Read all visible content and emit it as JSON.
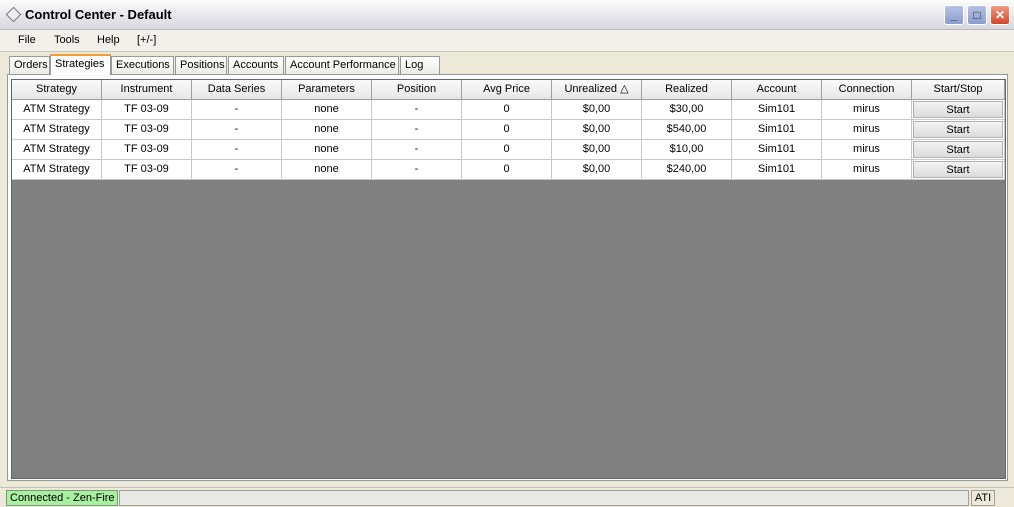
{
  "window": {
    "title": "Control Center - Default"
  },
  "menu": [
    "File",
    "Tools",
    "Help",
    "[+/-]"
  ],
  "tabs": [
    "Orders",
    "Strategies",
    "Executions",
    "Positions",
    "Accounts",
    "Account Performance",
    "Log"
  ],
  "active_tab": "Strategies",
  "table": {
    "columns": [
      "Strategy",
      "Instrument",
      "Data Series",
      "Parameters",
      "Position",
      "Avg Price",
      "Unrealized △",
      "Realized",
      "Account",
      "Connection",
      "Start/Stop"
    ],
    "rows": [
      [
        "ATM Strategy",
        "TF 03-09",
        "-",
        "none",
        "-",
        "0",
        "$0,00",
        "$30,00",
        "Sim101",
        "mirus",
        "Start"
      ],
      [
        "ATM Strategy",
        "TF 03-09",
        "-",
        "none",
        "-",
        "0",
        "$0,00",
        "$540,00",
        "Sim101",
        "mirus",
        "Start"
      ],
      [
        "ATM Strategy",
        "TF 03-09",
        "-",
        "none",
        "-",
        "0",
        "$0,00",
        "$10,00",
        "Sim101",
        "mirus",
        "Start"
      ],
      [
        "ATM Strategy",
        "TF 03-09",
        "-",
        "none",
        "-",
        "0",
        "$0,00",
        "$240,00",
        "Sim101",
        "mirus",
        "Start"
      ]
    ]
  },
  "status": {
    "connection": "Connected - Zen-Fire",
    "right": "ATI",
    "connection_color": "#a8f0a0"
  }
}
